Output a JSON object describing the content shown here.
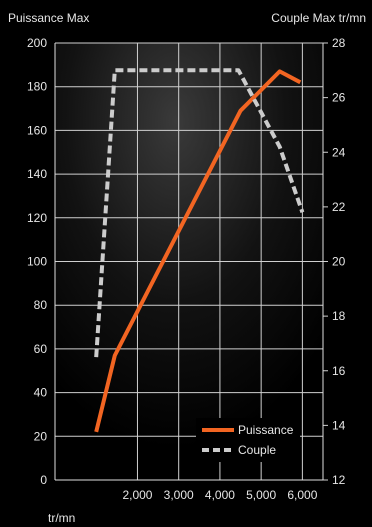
{
  "chart_data": {
    "type": "line",
    "ylabel_left": "Puissance Max",
    "ylabel_right": "Couple Max tr/mn",
    "xlabel": "tr/mn",
    "xlim": [
      0,
      6500
    ],
    "ylim_left": [
      0,
      200
    ],
    "ylim_right": [
      12,
      28
    ],
    "x_ticks": [
      2000,
      3000,
      4000,
      5000,
      6000
    ],
    "x_tick_labels": [
      "2,000",
      "3,000",
      "4,000",
      "5,000",
      "6,000"
    ],
    "y_left_ticks": [
      0,
      20,
      40,
      60,
      80,
      100,
      120,
      140,
      160,
      180,
      200
    ],
    "y_right_ticks": [
      12,
      14,
      16,
      18,
      20,
      22,
      24,
      26,
      28
    ],
    "grid": true,
    "legend_position": "bottom-right",
    "series": [
      {
        "name": "Puissance",
        "axis": "left",
        "color": "#f26522",
        "style": "solid",
        "x": [
          1000,
          1450,
          4500,
          5450,
          5950
        ],
        "y": [
          22,
          57,
          169,
          187,
          182
        ]
      },
      {
        "name": "Couple",
        "axis": "right",
        "color": "#cccccc",
        "style": "dashed",
        "x": [
          1000,
          1450,
          4450,
          5450,
          6000
        ],
        "y": [
          16.5,
          27,
          27,
          24.2,
          21.8
        ]
      }
    ]
  }
}
